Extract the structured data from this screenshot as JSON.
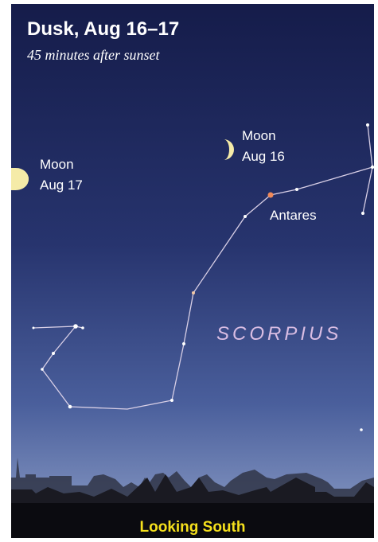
{
  "header": {
    "title": "Dusk, Aug 16–17",
    "subtitle": "45 minutes after sunset"
  },
  "moons": [
    {
      "name": "Moon",
      "date": "Aug 16"
    },
    {
      "name": "Moon",
      "date": "Aug 17"
    }
  ],
  "star_label": "Antares",
  "constellation": "SCORPIUS",
  "footer": "Looking South"
}
